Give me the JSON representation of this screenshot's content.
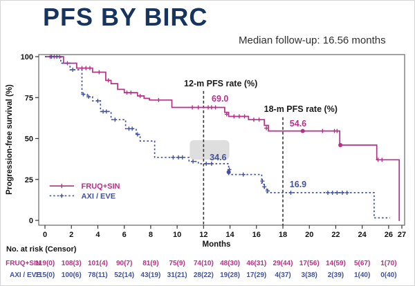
{
  "page": {
    "title": "PFS BY BIRC",
    "subtitle": "Median follow-up: 16.56 months"
  },
  "colors": {
    "fruq": "#b82f87",
    "axi": "#41519c",
    "title_navy": "#17345f",
    "text": "#1a1a1a",
    "axis": "#666666",
    "highlight_box": "#d9d9d9"
  },
  "chart_data": {
    "type": "line",
    "kind": "kaplan-meier-step",
    "title": "",
    "xlabel": "Months",
    "ylabel": "Progression-free survival (%)",
    "xlim": [
      0,
      27
    ],
    "ylim": [
      0,
      100
    ],
    "xticks": [
      0,
      2,
      4,
      6,
      8,
      10,
      12,
      14,
      16,
      18,
      20,
      22,
      24,
      26,
      27
    ],
    "yticks": [
      0,
      25,
      50,
      75,
      100
    ],
    "grid": false,
    "legend_position": "lower-left-inside",
    "key_rates": {
      "12m": {
        "FRUQ+SIN": 69.0,
        "AXI / EVE": 34.6
      },
      "18m": {
        "FRUQ+SIN": 54.6,
        "AXI / EVE": 16.9
      }
    },
    "vlines": [
      {
        "x": 12,
        "y_top": 79
      },
      {
        "x": 18,
        "y_top": 63
      }
    ],
    "highlight_box": {
      "x1": 10.95,
      "x2": 13.95,
      "y1": 37,
      "y2": 49
    },
    "annotations": [
      {
        "id": "rate12-title",
        "text": "12-m PFS rate (%)",
        "x": 13.3,
        "y": 83.5,
        "color_key": "text",
        "size": 12.5
      },
      {
        "id": "rate12-fruq",
        "text": "69.0",
        "x": 13.25,
        "y": 74.2,
        "color_key": "fruq",
        "size": 12.5
      },
      {
        "id": "rate18-title",
        "text": "18-m PFS rate (%)",
        "x": 19.35,
        "y": 67.9,
        "color_key": "text",
        "size": 12.5
      },
      {
        "id": "rate18-fruq",
        "text": "54.6",
        "x": 19.15,
        "y": 59.0,
        "color_key": "fruq",
        "size": 12.5
      },
      {
        "id": "rate12-axi",
        "text": "34.6",
        "x": 13.1,
        "y": 38.4,
        "color_key": "axi",
        "size": 12.5
      },
      {
        "id": "rate18-axi",
        "text": "16.9",
        "x": 19.15,
        "y": 21.9,
        "color_key": "axi",
        "size": 12.5
      }
    ],
    "series": [
      {
        "name": "FRUQ+SIN",
        "style": "solid",
        "color_key": "fruq",
        "steps": [
          [
            0,
            100
          ],
          [
            1.4,
            96
          ],
          [
            2.4,
            93
          ],
          [
            3.6,
            90.5
          ],
          [
            4.6,
            85.5
          ],
          [
            5.0,
            83.5
          ],
          [
            5.5,
            80
          ],
          [
            6.0,
            78
          ],
          [
            7.0,
            76
          ],
          [
            7.5,
            74.5
          ],
          [
            7.9,
            73.5
          ],
          [
            9.6,
            69
          ],
          [
            13.6,
            66
          ],
          [
            13.9,
            63.5
          ],
          [
            15.4,
            61.5
          ],
          [
            16.6,
            58
          ],
          [
            16.9,
            54.6
          ],
          [
            22.3,
            46
          ],
          [
            25.1,
            37
          ],
          [
            26.8,
            0
          ]
        ],
        "end_x": 26.85,
        "censors": [
          [
            0.4,
            100
          ],
          [
            0.7,
            100
          ],
          [
            1.1,
            100
          ],
          [
            1.7,
            96
          ],
          [
            2.8,
            93
          ],
          [
            3.1,
            93
          ],
          [
            3.4,
            93
          ],
          [
            4.1,
            90.5
          ],
          [
            4.8,
            85.5
          ],
          [
            6.2,
            78
          ],
          [
            6.5,
            78
          ],
          [
            7.2,
            76
          ],
          [
            8.6,
            73.5
          ],
          [
            11.15,
            69
          ],
          [
            11.6,
            69
          ],
          [
            12.35,
            69
          ],
          [
            12.6,
            69
          ],
          [
            12.9,
            69
          ],
          [
            13.75,
            64.8
          ],
          [
            14.3,
            63.5
          ],
          [
            14.7,
            63.5
          ],
          [
            15.1,
            63.5
          ],
          [
            15.8,
            61.5
          ],
          [
            16.2,
            61.5
          ],
          [
            16.75,
            56.3
          ],
          [
            21.0,
            54.6
          ],
          [
            21.9,
            54.6
          ],
          [
            22.1,
            54.6
          ],
          [
            25.2,
            37
          ],
          [
            25.5,
            37
          ]
        ],
        "dots": [
          [
            19.5,
            54.6
          ],
          [
            22.35,
            46
          ]
        ]
      },
      {
        "name": "AXI / EVE",
        "style": "dashed",
        "color_key": "axi",
        "steps": [
          [
            0,
            100
          ],
          [
            1.2,
            96
          ],
          [
            1.9,
            92
          ],
          [
            2.8,
            77
          ],
          [
            3.2,
            75.5
          ],
          [
            3.6,
            73
          ],
          [
            4.2,
            66.5
          ],
          [
            5.0,
            61.5
          ],
          [
            6.1,
            56
          ],
          [
            6.9,
            52.5
          ],
          [
            7.2,
            48.5
          ],
          [
            8.3,
            38.5
          ],
          [
            10.9,
            36
          ],
          [
            11.6,
            34.6
          ],
          [
            13.9,
            28
          ],
          [
            16.4,
            22
          ],
          [
            16.6,
            19
          ],
          [
            16.8,
            16.9
          ],
          [
            24.9,
            1.5
          ]
        ],
        "end_x": 26.1,
        "censors": [
          [
            0.5,
            100
          ],
          [
            0.9,
            100
          ],
          [
            2.1,
            92
          ],
          [
            2.9,
            77
          ],
          [
            3.3,
            75.5
          ],
          [
            4.0,
            73
          ],
          [
            4.4,
            66.5
          ],
          [
            4.65,
            66.5
          ],
          [
            5.3,
            61.5
          ],
          [
            6.35,
            56
          ],
          [
            6.6,
            56
          ],
          [
            7.0,
            52.5
          ],
          [
            9.7,
            38.5
          ],
          [
            10.1,
            38.5
          ],
          [
            10.4,
            38.5
          ],
          [
            11.2,
            36
          ],
          [
            12.2,
            34.6
          ],
          [
            12.6,
            34.6
          ],
          [
            13.95,
            31
          ],
          [
            15.0,
            28
          ],
          [
            16.45,
            24
          ],
          [
            16.6,
            20.5
          ],
          [
            16.85,
            18
          ],
          [
            18.6,
            16.9
          ],
          [
            21.4,
            16.9
          ],
          [
            21.75,
            16.9
          ],
          [
            22.1,
            16.9
          ],
          [
            22.5,
            16.9
          ],
          [
            22.85,
            16.9
          ]
        ],
        "dots": [
          [
            13.9,
            29.5
          ]
        ]
      }
    ]
  },
  "risk_table": {
    "heading": "No. at risk (Censor)",
    "months": [
      0,
      2,
      4,
      6,
      8,
      10,
      12,
      14,
      16,
      18,
      20,
      22,
      24,
      26
    ],
    "rows": [
      {
        "label": "FRUQ+SIN",
        "color_key": "fruq",
        "values": [
          "119(0)",
          "108(3)",
          "101(4)",
          "90(7)",
          "81(9)",
          "75(9)",
          "74(10)",
          "48(30)",
          "46(31)",
          "29(44)",
          "17(56)",
          "14(59)",
          "5(67)",
          "1(70)"
        ]
      },
      {
        "label": "AXI / EVE",
        "color_key": "axi",
        "values": [
          "115(0)",
          "100(6)",
          "78(11)",
          "52(14)",
          "43(19)",
          "31(21)",
          "28(22)",
          "19(28)",
          "17(29)",
          "4(37)",
          "3(38)",
          "2(39)",
          "1(40)",
          "0(40)"
        ]
      }
    ]
  }
}
